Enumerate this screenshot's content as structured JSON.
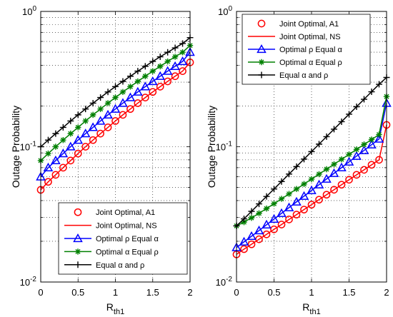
{
  "chart_data": [
    {
      "type": "line",
      "ylabel": "Outage Probability",
      "xlabel": "R",
      "xlabel_sub": "th1",
      "yscale": "log",
      "xlim": [
        0,
        2
      ],
      "ylim": [
        0.01,
        1
      ],
      "grid": true,
      "legend_position": "bottom-right",
      "x_ticks": [
        "0",
        "0.5",
        "1",
        "1.5",
        "2"
      ],
      "y_ticks": [
        {
          "base": "10",
          "exp": "-2"
        },
        {
          "base": "10",
          "exp": "-1"
        },
        {
          "base": "10",
          "exp": "0"
        }
      ],
      "x": [
        0,
        0.1,
        0.2,
        0.3,
        0.4,
        0.5,
        0.6,
        0.7,
        0.8,
        0.9,
        1.0,
        1.1,
        1.2,
        1.3,
        1.4,
        1.5,
        1.6,
        1.7,
        1.8,
        1.9,
        2.0
      ],
      "series": [
        {
          "name": "Joint Optimal, A1",
          "color": "#ff0000",
          "marker": "circle",
          "line": false,
          "values": [
            0.048,
            0.055,
            0.062,
            0.07,
            0.079,
            0.089,
            0.1,
            0.112,
            0.125,
            0.139,
            0.155,
            0.172,
            0.19,
            0.21,
            0.231,
            0.254,
            0.278,
            0.304,
            0.332,
            0.362,
            0.42
          ]
        },
        {
          "name": "Joint Optimal, NS",
          "color": "#ff0000",
          "marker": "none",
          "line": true,
          "values": [
            0.048,
            0.055,
            0.062,
            0.07,
            0.079,
            0.089,
            0.1,
            0.112,
            0.125,
            0.139,
            0.155,
            0.172,
            0.19,
            0.21,
            0.231,
            0.254,
            0.278,
            0.304,
            0.332,
            0.362,
            0.42
          ]
        },
        {
          "name": "Optimal ρ Equal α",
          "color": "#0000ff",
          "marker": "triangle",
          "line": true,
          "values": [
            0.06,
            0.07,
            0.079,
            0.089,
            0.1,
            0.112,
            0.125,
            0.139,
            0.155,
            0.172,
            0.19,
            0.21,
            0.231,
            0.254,
            0.278,
            0.304,
            0.332,
            0.362,
            0.393,
            0.427,
            0.5
          ]
        },
        {
          "name": "Optimal α Equal ρ",
          "color": "#008000",
          "marker": "star",
          "line": true,
          "values": [
            0.079,
            0.089,
            0.1,
            0.112,
            0.125,
            0.139,
            0.155,
            0.172,
            0.19,
            0.21,
            0.231,
            0.254,
            0.278,
            0.304,
            0.332,
            0.362,
            0.393,
            0.427,
            0.462,
            0.499,
            0.56
          ]
        },
        {
          "name": "Equal α and ρ",
          "color": "#000000",
          "marker": "plus",
          "line": true,
          "values": [
            0.1,
            0.112,
            0.125,
            0.139,
            0.155,
            0.172,
            0.19,
            0.21,
            0.231,
            0.254,
            0.278,
            0.304,
            0.332,
            0.362,
            0.393,
            0.427,
            0.462,
            0.499,
            0.538,
            0.579,
            0.64
          ]
        }
      ]
    },
    {
      "type": "line",
      "ylabel": "Outage Probability",
      "xlabel": "R",
      "xlabel_sub": "th1",
      "yscale": "log",
      "xlim": [
        0,
        2
      ],
      "ylim": [
        0.01,
        1
      ],
      "grid": true,
      "legend_position": "top-left",
      "x_ticks": [
        "0",
        "0.5",
        "1",
        "1.5",
        "2"
      ],
      "y_ticks": [
        {
          "base": "10",
          "exp": "-2"
        },
        {
          "base": "10",
          "exp": "-1"
        },
        {
          "base": "10",
          "exp": "0"
        }
      ],
      "x": [
        0,
        0.1,
        0.2,
        0.3,
        0.4,
        0.5,
        0.6,
        0.7,
        0.8,
        0.9,
        1.0,
        1.1,
        1.2,
        1.3,
        1.4,
        1.5,
        1.6,
        1.7,
        1.8,
        1.9,
        2.0
      ],
      "series": [
        {
          "name": "Joint Optimal, A1",
          "color": "#ff0000",
          "marker": "circle",
          "line": false,
          "values": [
            0.016,
            0.0175,
            0.019,
            0.0207,
            0.0225,
            0.0245,
            0.0266,
            0.029,
            0.0315,
            0.0343,
            0.0373,
            0.0406,
            0.0442,
            0.0481,
            0.0524,
            0.057,
            0.062,
            0.0675,
            0.0735,
            0.08,
            0.145
          ]
        },
        {
          "name": "Joint Optimal, NS",
          "color": "#ff0000",
          "marker": "none",
          "line": true,
          "values": [
            0.016,
            0.0175,
            0.019,
            0.0207,
            0.0225,
            0.0245,
            0.0266,
            0.029,
            0.0315,
            0.0343,
            0.0373,
            0.0406,
            0.0442,
            0.0481,
            0.0524,
            0.057,
            0.062,
            0.0675,
            0.0735,
            0.08,
            0.145
          ]
        },
        {
          "name": "Optimal ρ Equal α",
          "color": "#0000ff",
          "marker": "triangle",
          "line": true,
          "values": [
            0.018,
            0.0198,
            0.0218,
            0.024,
            0.0265,
            0.0292,
            0.0322,
            0.0355,
            0.0391,
            0.0431,
            0.0475,
            0.0524,
            0.0577,
            0.0636,
            0.0701,
            0.0773,
            0.0852,
            0.0939,
            0.1035,
            0.1141,
            0.21
          ]
        },
        {
          "name": "Optimal α Equal ρ",
          "color": "#008000",
          "marker": "star",
          "line": true,
          "values": [
            0.026,
            0.0277,
            0.0298,
            0.0322,
            0.0349,
            0.0379,
            0.0412,
            0.0448,
            0.0487,
            0.053,
            0.0576,
            0.0627,
            0.0682,
            0.0742,
            0.0807,
            0.0878,
            0.0955,
            0.1039,
            0.113,
            0.123,
            0.235
          ]
        },
        {
          "name": "Equal α and ρ",
          "color": "#000000",
          "marker": "plus",
          "line": true,
          "values": [
            0.026,
            0.0293,
            0.0333,
            0.0378,
            0.0429,
            0.0487,
            0.0553,
            0.0628,
            0.0713,
            0.081,
            0.092,
            0.1045,
            0.1187,
            0.1348,
            0.1531,
            0.1739,
            0.1975,
            0.2243,
            0.2548,
            0.2894,
            0.325
          ]
        }
      ]
    }
  ]
}
